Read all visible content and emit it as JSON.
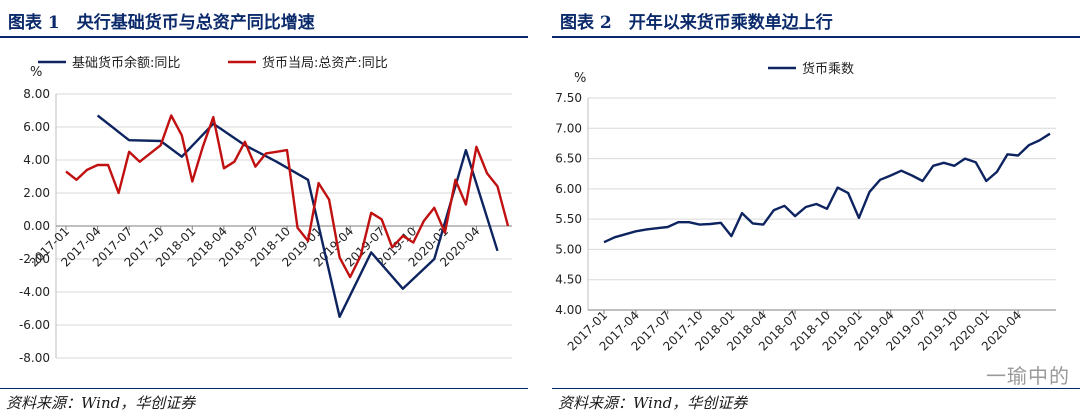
{
  "source_text": "资料来源：Wind，华创证券",
  "watermark": "一瑜中的",
  "chart_data": [
    {
      "type": "line",
      "title": "图表 1　央行基础货币与总资产同比增速",
      "ylabel": "%",
      "ylim": [
        -8,
        8
      ],
      "yticks": [
        -8,
        -6,
        -4,
        -2,
        0,
        2,
        4,
        6,
        8
      ],
      "ytick_labels": [
        "-8.00",
        "-6.00",
        "-4.00",
        "-2.00",
        "0.00",
        "2.00",
        "4.00",
        "6.00",
        "8.00"
      ],
      "x_tick_labels": [
        "2017-01",
        "2017-04",
        "2017-07",
        "2017-10",
        "2018-01",
        "2018-04",
        "2018-07",
        "2018-10",
        "2019-01",
        "2019-04",
        "2019-07",
        "2019-10",
        "2020-01",
        "2020-04"
      ],
      "legend_position": "top",
      "series": [
        {
          "name": "基础货币余额:同比",
          "color": "#0d2460",
          "points": [
            [
              "2017-04",
              6.7
            ],
            [
              "2017-07",
              5.2
            ],
            [
              "2017-10",
              5.15
            ],
            [
              "2017-12",
              4.2
            ],
            [
              "2018-03",
              6.2
            ],
            [
              "2018-06",
              4.9
            ],
            [
              "2018-09",
              3.9
            ],
            [
              "2018-12",
              2.8
            ],
            [
              "2019-03",
              -5.5
            ],
            [
              "2019-06",
              -1.6
            ],
            [
              "2019-09",
              -3.8
            ],
            [
              "2019-12",
              -2.0
            ],
            [
              "2020-03",
              4.6
            ],
            [
              "2020-06",
              -1.5
            ]
          ]
        },
        {
          "name": "货币当局:总资产:同比",
          "color": "#c01010",
          "points": [
            [
              "2017-01",
              3.3
            ],
            [
              "2017-02",
              2.8
            ],
            [
              "2017-03",
              3.4
            ],
            [
              "2017-04",
              3.7
            ],
            [
              "2017-05",
              3.7
            ],
            [
              "2017-06",
              2.0
            ],
            [
              "2017-07",
              4.5
            ],
            [
              "2017-08",
              3.9
            ],
            [
              "2017-09",
              4.4
            ],
            [
              "2017-10",
              4.9
            ],
            [
              "2017-11",
              6.7
            ],
            [
              "2017-12",
              5.5
            ],
            [
              "2018-01",
              2.7
            ],
            [
              "2018-02",
              4.8
            ],
            [
              "2018-03",
              6.6
            ],
            [
              "2018-04",
              3.5
            ],
            [
              "2018-05",
              3.9
            ],
            [
              "2018-06",
              5.1
            ],
            [
              "2018-07",
              3.6
            ],
            [
              "2018-08",
              4.4
            ],
            [
              "2018-09",
              4.5
            ],
            [
              "2018-10",
              4.6
            ],
            [
              "2018-11",
              -0.1
            ],
            [
              "2018-12",
              -0.9
            ],
            [
              "2019-01",
              2.6
            ],
            [
              "2019-02",
              1.6
            ],
            [
              "2019-03",
              -1.9
            ],
            [
              "2019-04",
              -3.1
            ],
            [
              "2019-05",
              -1.8
            ],
            [
              "2019-06",
              0.8
            ],
            [
              "2019-07",
              0.4
            ],
            [
              "2019-08",
              -1.3
            ],
            [
              "2019-09",
              -0.6
            ],
            [
              "2019-10",
              -1.0
            ],
            [
              "2019-11",
              0.3
            ],
            [
              "2019-12",
              1.1
            ],
            [
              "2020-01",
              -0.4
            ],
            [
              "2020-02",
              2.8
            ],
            [
              "2020-03",
              1.3
            ],
            [
              "2020-04",
              4.8
            ],
            [
              "2020-05",
              3.2
            ],
            [
              "2020-06",
              2.4
            ],
            [
              "2020-07",
              0.0
            ]
          ]
        }
      ]
    },
    {
      "type": "line",
      "title": "图表 2　开年以来货币乘数单边上行",
      "ylabel": "%",
      "ylim": [
        4.0,
        7.5
      ],
      "yticks": [
        4.0,
        4.5,
        5.0,
        5.5,
        6.0,
        6.5,
        7.0,
        7.5
      ],
      "ytick_labels": [
        "4.00",
        "4.50",
        "5.00",
        "5.50",
        "6.00",
        "6.50",
        "7.00",
        "7.50"
      ],
      "x_tick_labels": [
        "2017-01",
        "2017-04",
        "2017-07",
        "2017-10",
        "2018-01",
        "2018-04",
        "2018-07",
        "2018-10",
        "2019-01",
        "2019-04",
        "2019-07",
        "2019-10",
        "2020-01",
        "2020-04"
      ],
      "legend_position": "top-left",
      "series": [
        {
          "name": "货币乘数",
          "color": "#0d2460",
          "points": [
            [
              "2017-01",
              5.12
            ],
            [
              "2017-02",
              5.2
            ],
            [
              "2017-03",
              5.25
            ],
            [
              "2017-04",
              5.3
            ],
            [
              "2017-05",
              5.33
            ],
            [
              "2017-06",
              5.35
            ],
            [
              "2017-07",
              5.37
            ],
            [
              "2017-08",
              5.45
            ],
            [
              "2017-09",
              5.45
            ],
            [
              "2017-10",
              5.41
            ],
            [
              "2017-11",
              5.42
            ],
            [
              "2017-12",
              5.44
            ],
            [
              "2018-01",
              5.22
            ],
            [
              "2018-02",
              5.6
            ],
            [
              "2018-03",
              5.43
            ],
            [
              "2018-04",
              5.41
            ],
            [
              "2018-05",
              5.65
            ],
            [
              "2018-06",
              5.72
            ],
            [
              "2018-07",
              5.55
            ],
            [
              "2018-08",
              5.7
            ],
            [
              "2018-09",
              5.75
            ],
            [
              "2018-10",
              5.67
            ],
            [
              "2018-11",
              6.02
            ],
            [
              "2018-12",
              5.93
            ],
            [
              "2019-01",
              5.52
            ],
            [
              "2019-02",
              5.95
            ],
            [
              "2019-03",
              6.15
            ],
            [
              "2019-04",
              6.22
            ],
            [
              "2019-05",
              6.3
            ],
            [
              "2019-06",
              6.22
            ],
            [
              "2019-07",
              6.13
            ],
            [
              "2019-08",
              6.38
            ],
            [
              "2019-09",
              6.43
            ],
            [
              "2019-10",
              6.38
            ],
            [
              "2019-11",
              6.5
            ],
            [
              "2019-12",
              6.44
            ],
            [
              "2020-01",
              6.13
            ],
            [
              "2020-02",
              6.28
            ],
            [
              "2020-03",
              6.57
            ],
            [
              "2020-04",
              6.55
            ],
            [
              "2020-05",
              6.72
            ],
            [
              "2020-06",
              6.8
            ],
            [
              "2020-07",
              6.91
            ]
          ]
        }
      ]
    }
  ]
}
